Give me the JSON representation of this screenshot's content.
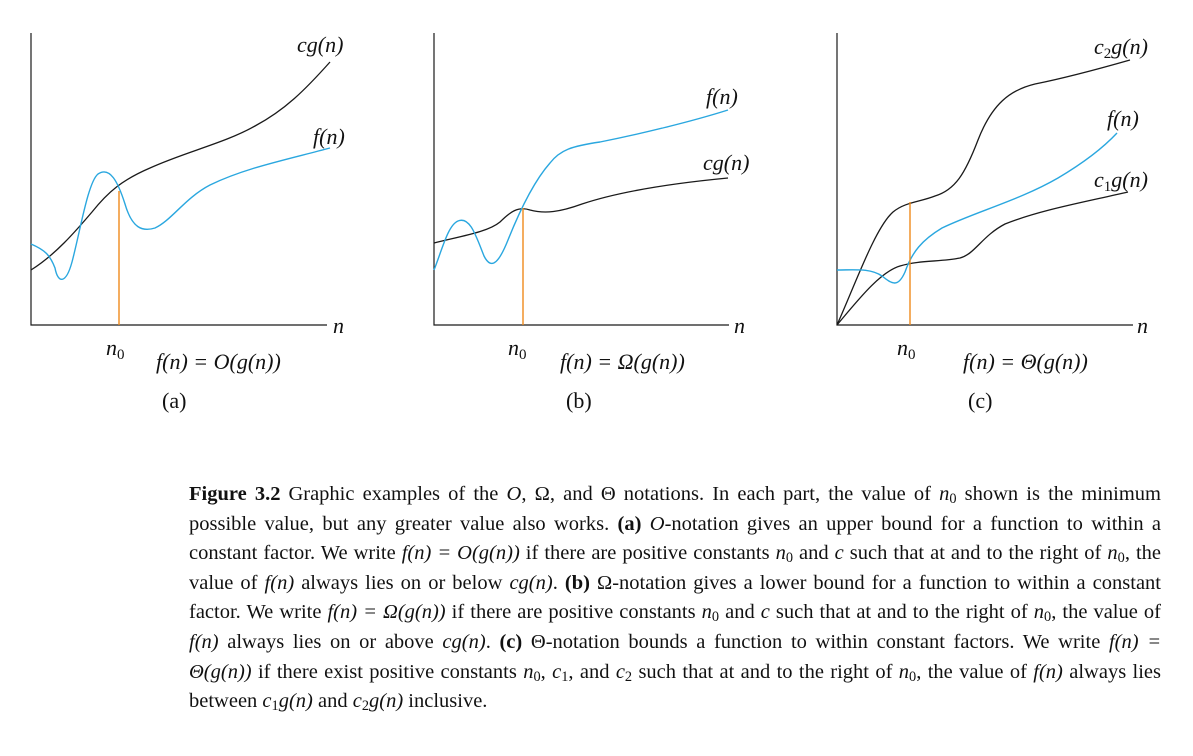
{
  "panels": [
    {
      "id": "a",
      "label": "(a)",
      "formula": "f(n) = O(g(n))",
      "axis_var": "n",
      "threshold_label": "n",
      "threshold_sub": "0",
      "curves": [
        {
          "name": "cg(n)",
          "role": "upper",
          "color": "#1a1a1a"
        },
        {
          "name": "f(n)",
          "role": "function",
          "color": "#2aa7df"
        }
      ]
    },
    {
      "id": "b",
      "label": "(b)",
      "formula": "f(n) = Ω(g(n))",
      "axis_var": "n",
      "threshold_label": "n",
      "threshold_sub": "0",
      "curves": [
        {
          "name": "f(n)",
          "role": "function",
          "color": "#2aa7df"
        },
        {
          "name": "cg(n)",
          "role": "lower",
          "color": "#1a1a1a"
        }
      ]
    },
    {
      "id": "c",
      "label": "(c)",
      "formula": "f(n) = Θ(g(n))",
      "axis_var": "n",
      "threshold_label": "n",
      "threshold_sub": "0",
      "curves": [
        {
          "name": "c2g(n)",
          "role": "upper",
          "color": "#1a1a1a"
        },
        {
          "name": "f(n)",
          "role": "function",
          "color": "#2aa7df"
        },
        {
          "name": "c1g(n)",
          "role": "lower",
          "color": "#1a1a1a"
        }
      ]
    }
  ],
  "threshold_color": "#f08a1c",
  "caption": {
    "figure_label": "Figure 3.2",
    "intro_1": "Graphic examples of the ",
    "sym_O": "O",
    "sep_1": ", ",
    "sym_Omega": "Ω",
    "sep_2": ", and ",
    "sym_Theta": "Θ",
    "intro_2": " notations. In each part, the value of ",
    "n0_var": "n",
    "n0_sub": "0",
    "intro_3": " shown is the minimum possible value, but any greater value also works. ",
    "part_a_label": "(a)",
    "part_a_1": "-notation gives an upper bound for a function to within a constant factor. We write ",
    "part_a_formula": "f(n) = O(g(n))",
    "part_a_2": " if there are positive constants ",
    "part_a_3": " and ",
    "c_var": "c",
    "part_a_4": " such that at and to the right of ",
    "part_a_5": ", the value of ",
    "fn": "f(n)",
    "part_a_6": " always lies on or be­low ",
    "cgn": "cg(n)",
    "period": ". ",
    "part_b_label": "(b)",
    "part_b_1": "-notation gives a lower bound for a function to within a constant factor. We write ",
    "part_b_formula": "f(n) = Ω(g(n))",
    "part_b_2": " if there are positive constants ",
    "part_b_3": " and ",
    "part_b_4": " such that at and to the right of ",
    "part_b_5": ", the value of ",
    "part_b_6": " always lies on or above ",
    "part_c_label": "(c)",
    "part_c_1": "-notation bounds a function to within constant factors. We write ",
    "part_c_formula": "f(n) = Θ(g(n))",
    "part_c_2": " if there exist positive constants ",
    "comma": ", ",
    "c1_var": "c",
    "c1_sub": "1",
    "part_c_3": ", and ",
    "c2_var": "c",
    "c2_sub": "2",
    "part_c_4": " such that at and to the right of ",
    "part_c_5": ", the value of ",
    "part_c_6": " always lies between ",
    "g_of_n": "g(n)",
    "part_c_7": " and ",
    "part_c_8": " inclusive."
  }
}
